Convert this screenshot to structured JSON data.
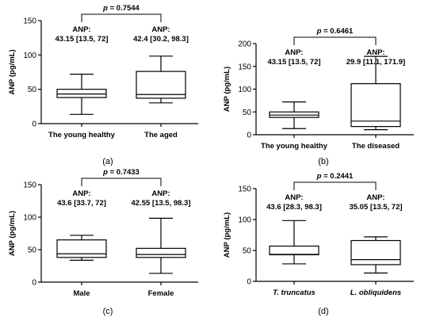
{
  "chart_data": [
    {
      "panel_label": "(a)",
      "type": "boxplot",
      "ylabel": "ANP (pg/mL)",
      "ylim": [
        0,
        150
      ],
      "yticks": [
        0,
        50,
        100,
        150
      ],
      "categories": [
        "The young healthy",
        "The aged"
      ],
      "p_label": "p = 0.7544",
      "boxes": [
        {
          "min": 13.5,
          "q1": 38,
          "median": 43.15,
          "q3": 50,
          "max": 72,
          "annotation": [
            "ANP:",
            "43.15 [13.5, 72]"
          ]
        },
        {
          "min": 30.2,
          "q1": 37,
          "median": 42.4,
          "q3": 76,
          "max": 98.3,
          "annotation": [
            "ANP:",
            "42.4 [30.2, 98.3]"
          ]
        }
      ]
    },
    {
      "panel_label": "(b)",
      "type": "boxplot",
      "ylabel": "ANP (pg/mL)",
      "ylim": [
        0,
        200
      ],
      "yticks": [
        0,
        50,
        100,
        150,
        200
      ],
      "categories": [
        "The young healthy",
        "The diseased"
      ],
      "p_label": "p = 0.6461",
      "boxes": [
        {
          "min": 13.5,
          "q1": 38,
          "median": 43.15,
          "q3": 50,
          "max": 72,
          "annotation": [
            "ANP:",
            "43.15 [13.5, 72]"
          ]
        },
        {
          "min": 11.1,
          "q1": 18,
          "median": 29.9,
          "q3": 112,
          "max": 171.9,
          "annotation": [
            "ANP:",
            "29.9 [11.1, 171.9]"
          ]
        }
      ]
    },
    {
      "panel_label": "(c)",
      "type": "boxplot",
      "ylabel": "ANP (pg/mL)",
      "ylim": [
        0,
        150
      ],
      "yticks": [
        0,
        50,
        100,
        150
      ],
      "categories": [
        "Male",
        "Female"
      ],
      "p_label": "p = 0.7433",
      "boxes": [
        {
          "min": 33.7,
          "q1": 38,
          "median": 43.6,
          "q3": 65,
          "max": 72,
          "annotation": [
            "ANP:",
            "43.6 [33.7, 72]"
          ]
        },
        {
          "min": 13.5,
          "q1": 38,
          "median": 42.55,
          "q3": 52,
          "max": 98.3,
          "annotation": [
            "ANP:",
            "42.55 [13.5, 98.3]"
          ]
        }
      ]
    },
    {
      "panel_label": "(d)",
      "type": "boxplot",
      "ylabel": "ANP (pg/mL)",
      "ylim": [
        0,
        150
      ],
      "yticks": [
        0,
        50,
        100,
        150
      ],
      "categories": [
        "T. truncatus",
        "L. obliquidens"
      ],
      "italic_categories": true,
      "p_label": "p = 0.2441",
      "boxes": [
        {
          "min": 28.3,
          "q1": 43,
          "median": 43.6,
          "q3": 57,
          "max": 98.3,
          "annotation": [
            "ANP:",
            "43.6 [28.3, 98.3]"
          ]
        },
        {
          "min": 13.5,
          "q1": 27,
          "median": 35.05,
          "q3": 66,
          "max": 72,
          "annotation": [
            "ANP:",
            "35.05 [13.5, 72]"
          ]
        }
      ]
    }
  ]
}
